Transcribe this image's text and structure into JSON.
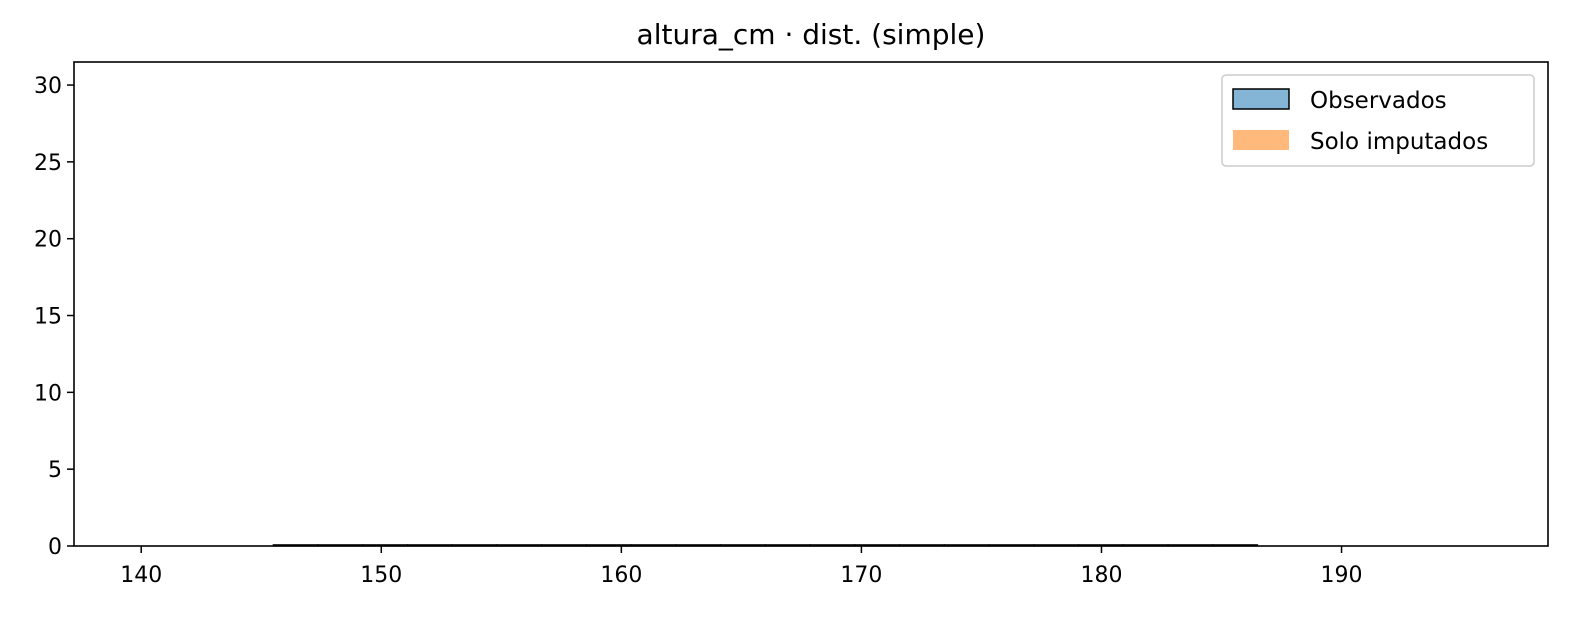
{
  "chart_data": {
    "type": "bar",
    "title": "altura_cm · dist. (simple)",
    "xlabel": "",
    "ylabel": "",
    "xlim": [
      137.2,
      198.6
    ],
    "ylim": [
      0,
      31.5
    ],
    "x_ticks": [
      140,
      150,
      160,
      170,
      180,
      190
    ],
    "y_ticks": [
      0,
      5,
      10,
      15,
      20,
      25,
      30
    ],
    "grid": false,
    "legend_position": "top-right",
    "series": [
      {
        "name": "Observados",
        "color": "#1f77b4",
        "edge_color": "#000000",
        "alpha": 0.55,
        "bins": {
          "start": 145.5,
          "end": 186.5,
          "count": 22
        },
        "values": [
          0,
          0,
          0,
          0,
          0,
          0,
          0,
          0,
          0,
          0,
          0,
          0,
          0,
          0,
          0,
          0,
          0,
          0,
          0,
          0,
          0,
          0
        ]
      },
      {
        "name": "Solo imputados",
        "color": "#ff7f0e",
        "alpha": 0.55,
        "values": []
      }
    ]
  }
}
